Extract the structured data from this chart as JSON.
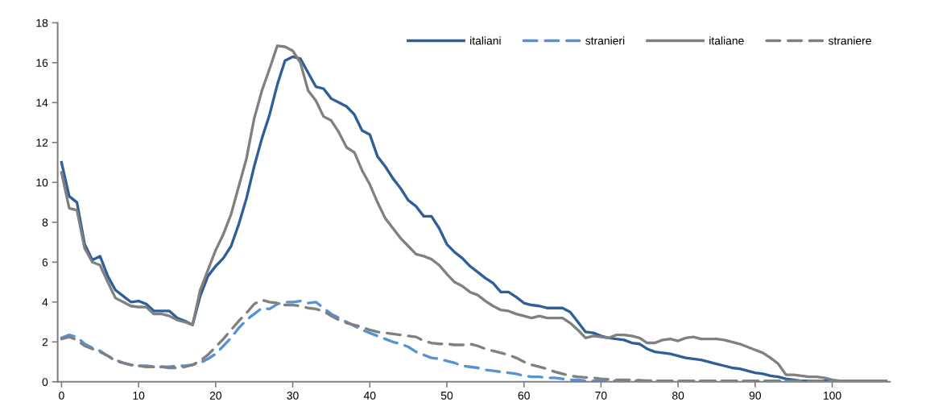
{
  "chart_data": {
    "type": "line",
    "x": [
      0,
      1,
      2,
      3,
      4,
      5,
      6,
      7,
      8,
      9,
      10,
      11,
      12,
      13,
      14,
      15,
      16,
      17,
      18,
      19,
      20,
      21,
      22,
      23,
      24,
      25,
      26,
      27,
      28,
      29,
      30,
      31,
      32,
      33,
      34,
      35,
      36,
      37,
      38,
      39,
      40,
      41,
      42,
      43,
      44,
      45,
      46,
      47,
      48,
      49,
      50,
      51,
      52,
      53,
      54,
      55,
      56,
      57,
      58,
      59,
      60,
      61,
      62,
      63,
      64,
      65,
      66,
      67,
      68,
      69,
      70,
      71,
      72,
      73,
      74,
      75,
      76,
      77,
      78,
      79,
      80,
      81,
      82,
      83,
      84,
      85,
      86,
      87,
      88,
      89,
      90,
      91,
      92,
      93,
      94,
      95,
      96,
      97,
      98,
      99,
      100,
      101,
      102,
      103,
      104,
      105,
      106,
      107
    ],
    "series": [
      {
        "name": "italiani",
        "color": "#2e5f99",
        "line_style": "solid",
        "values": [
          11.0,
          9.3,
          9.0,
          6.9,
          6.1,
          6.3,
          5.3,
          4.6,
          4.3,
          4.0,
          4.05,
          3.9,
          3.55,
          3.55,
          3.55,
          3.2,
          3.05,
          2.85,
          4.3,
          5.3,
          5.8,
          6.2,
          6.8,
          7.9,
          9.2,
          10.8,
          12.2,
          13.4,
          14.9,
          16.1,
          16.3,
          16.2,
          15.5,
          14.8,
          14.7,
          14.2,
          14.0,
          13.8,
          13.4,
          12.6,
          12.4,
          11.3,
          10.8,
          10.2,
          9.7,
          9.1,
          8.8,
          8.3,
          8.3,
          7.7,
          6.9,
          6.5,
          6.2,
          5.8,
          5.5,
          5.2,
          4.95,
          4.5,
          4.5,
          4.25,
          3.95,
          3.85,
          3.8,
          3.7,
          3.7,
          3.7,
          3.5,
          3.0,
          2.5,
          2.45,
          2.3,
          2.2,
          2.15,
          2.1,
          1.95,
          1.9,
          1.65,
          1.5,
          1.45,
          1.4,
          1.3,
          1.2,
          1.15,
          1.1,
          1.0,
          0.9,
          0.8,
          0.7,
          0.65,
          0.55,
          0.45,
          0.4,
          0.3,
          0.25,
          0.15,
          0.1,
          0.05,
          0.05,
          0.05,
          0.05,
          0.05,
          null,
          null,
          null,
          null,
          null,
          null,
          null
        ]
      },
      {
        "name": "stranieri",
        "color": "#5592d6",
        "line_style": "dashed",
        "values": [
          2.2,
          2.35,
          2.25,
          1.9,
          1.7,
          1.55,
          1.3,
          1.1,
          0.95,
          0.85,
          0.8,
          0.8,
          0.75,
          0.75,
          0.75,
          0.8,
          0.8,
          0.85,
          0.95,
          1.15,
          1.4,
          1.8,
          2.2,
          2.7,
          3.1,
          3.4,
          3.7,
          3.65,
          3.9,
          4.0,
          4.0,
          4.05,
          3.95,
          4.0,
          3.7,
          3.4,
          3.2,
          3.0,
          2.8,
          2.6,
          2.45,
          2.3,
          2.15,
          2.0,
          1.9,
          1.75,
          1.5,
          1.35,
          1.2,
          1.15,
          1.05,
          0.95,
          0.8,
          0.75,
          0.7,
          0.6,
          0.55,
          0.5,
          0.45,
          0.4,
          0.3,
          0.25,
          0.25,
          0.2,
          0.2,
          0.15,
          0.1,
          0.1,
          0.05,
          0.05,
          0.05,
          0.05,
          0.05,
          0.05,
          0.05,
          0.05,
          0.05,
          0.05,
          0.05,
          0.05,
          0.05,
          0.05,
          0.05,
          0.05,
          0.05,
          0.05,
          0.05,
          0.05,
          0.05,
          0.05,
          0.05,
          0.05,
          0.05,
          0.05,
          0.05,
          0.05,
          0.02,
          0.02,
          0.02,
          0.02,
          0.02,
          null,
          null,
          null,
          null,
          null,
          null,
          null
        ]
      },
      {
        "name": "italiane",
        "color": "#808080",
        "line_style": "solid",
        "values": [
          10.5,
          8.7,
          8.6,
          6.7,
          6.0,
          5.85,
          5.0,
          4.2,
          4.0,
          3.8,
          3.75,
          3.75,
          3.4,
          3.4,
          3.3,
          3.1,
          3.0,
          2.85,
          4.6,
          5.6,
          6.6,
          7.4,
          8.4,
          9.8,
          11.2,
          13.2,
          14.6,
          15.7,
          16.85,
          16.8,
          16.6,
          16.0,
          14.6,
          14.1,
          13.3,
          13.1,
          12.5,
          11.75,
          11.5,
          10.6,
          9.9,
          9.0,
          8.2,
          7.7,
          7.2,
          6.8,
          6.4,
          6.3,
          6.15,
          5.85,
          5.4,
          5.0,
          4.8,
          4.5,
          4.35,
          4.05,
          3.8,
          3.6,
          3.55,
          3.4,
          3.3,
          3.2,
          3.3,
          3.2,
          3.2,
          3.2,
          2.95,
          2.6,
          2.2,
          2.3,
          2.25,
          2.2,
          2.35,
          2.35,
          2.3,
          2.2,
          1.95,
          1.95,
          2.1,
          2.15,
          2.05,
          2.2,
          2.25,
          2.15,
          2.15,
          2.15,
          2.1,
          2.0,
          1.9,
          1.75,
          1.6,
          1.45,
          1.2,
          0.9,
          0.35,
          0.35,
          0.3,
          0.25,
          0.25,
          0.2,
          0.1,
          0.05,
          0.05,
          0.05,
          0.05,
          0.05,
          0.05,
          0.05
        ]
      },
      {
        "name": "straniere",
        "color": "#808080",
        "line_style": "dashed",
        "values": [
          2.15,
          2.25,
          2.1,
          1.8,
          1.65,
          1.5,
          1.3,
          1.05,
          0.95,
          0.85,
          0.8,
          0.75,
          0.75,
          0.75,
          0.7,
          0.7,
          0.75,
          0.85,
          1.05,
          1.35,
          1.75,
          2.15,
          2.6,
          3.05,
          3.45,
          3.9,
          4.1,
          4.0,
          3.95,
          3.85,
          3.85,
          3.8,
          3.7,
          3.65,
          3.55,
          3.3,
          3.1,
          2.95,
          2.85,
          2.75,
          2.6,
          2.5,
          2.45,
          2.4,
          2.35,
          2.3,
          2.25,
          2.05,
          1.95,
          1.9,
          1.9,
          1.85,
          1.85,
          1.9,
          1.8,
          1.65,
          1.55,
          1.45,
          1.35,
          1.2,
          1.0,
          0.85,
          0.75,
          0.65,
          0.5,
          0.4,
          0.3,
          0.25,
          0.22,
          0.2,
          0.15,
          0.12,
          0.1,
          0.1,
          0.1,
          0.08,
          0.06,
          0.05,
          0.05,
          0.05,
          0.05,
          0.05,
          0.05,
          0.05,
          0.05,
          0.05,
          0.05,
          0.05,
          0.05,
          0.05,
          0.05,
          0.05,
          0.05,
          0.05,
          0.05,
          0.05,
          0.05,
          0.05,
          0.05,
          0.05,
          0.05,
          0.05,
          0.05,
          0.05,
          0.05,
          0.05,
          0.05,
          0.05
        ]
      }
    ],
    "xlim": [
      -0.5,
      107.5
    ],
    "xticks": [
      0,
      10,
      20,
      30,
      40,
      50,
      60,
      70,
      80,
      90,
      100
    ],
    "ylim": [
      0,
      18
    ],
    "yticks": [
      0,
      2,
      4,
      6,
      8,
      10,
      12,
      14,
      16,
      18
    ],
    "grid": false,
    "legend": "top right",
    "marker": "none"
  }
}
